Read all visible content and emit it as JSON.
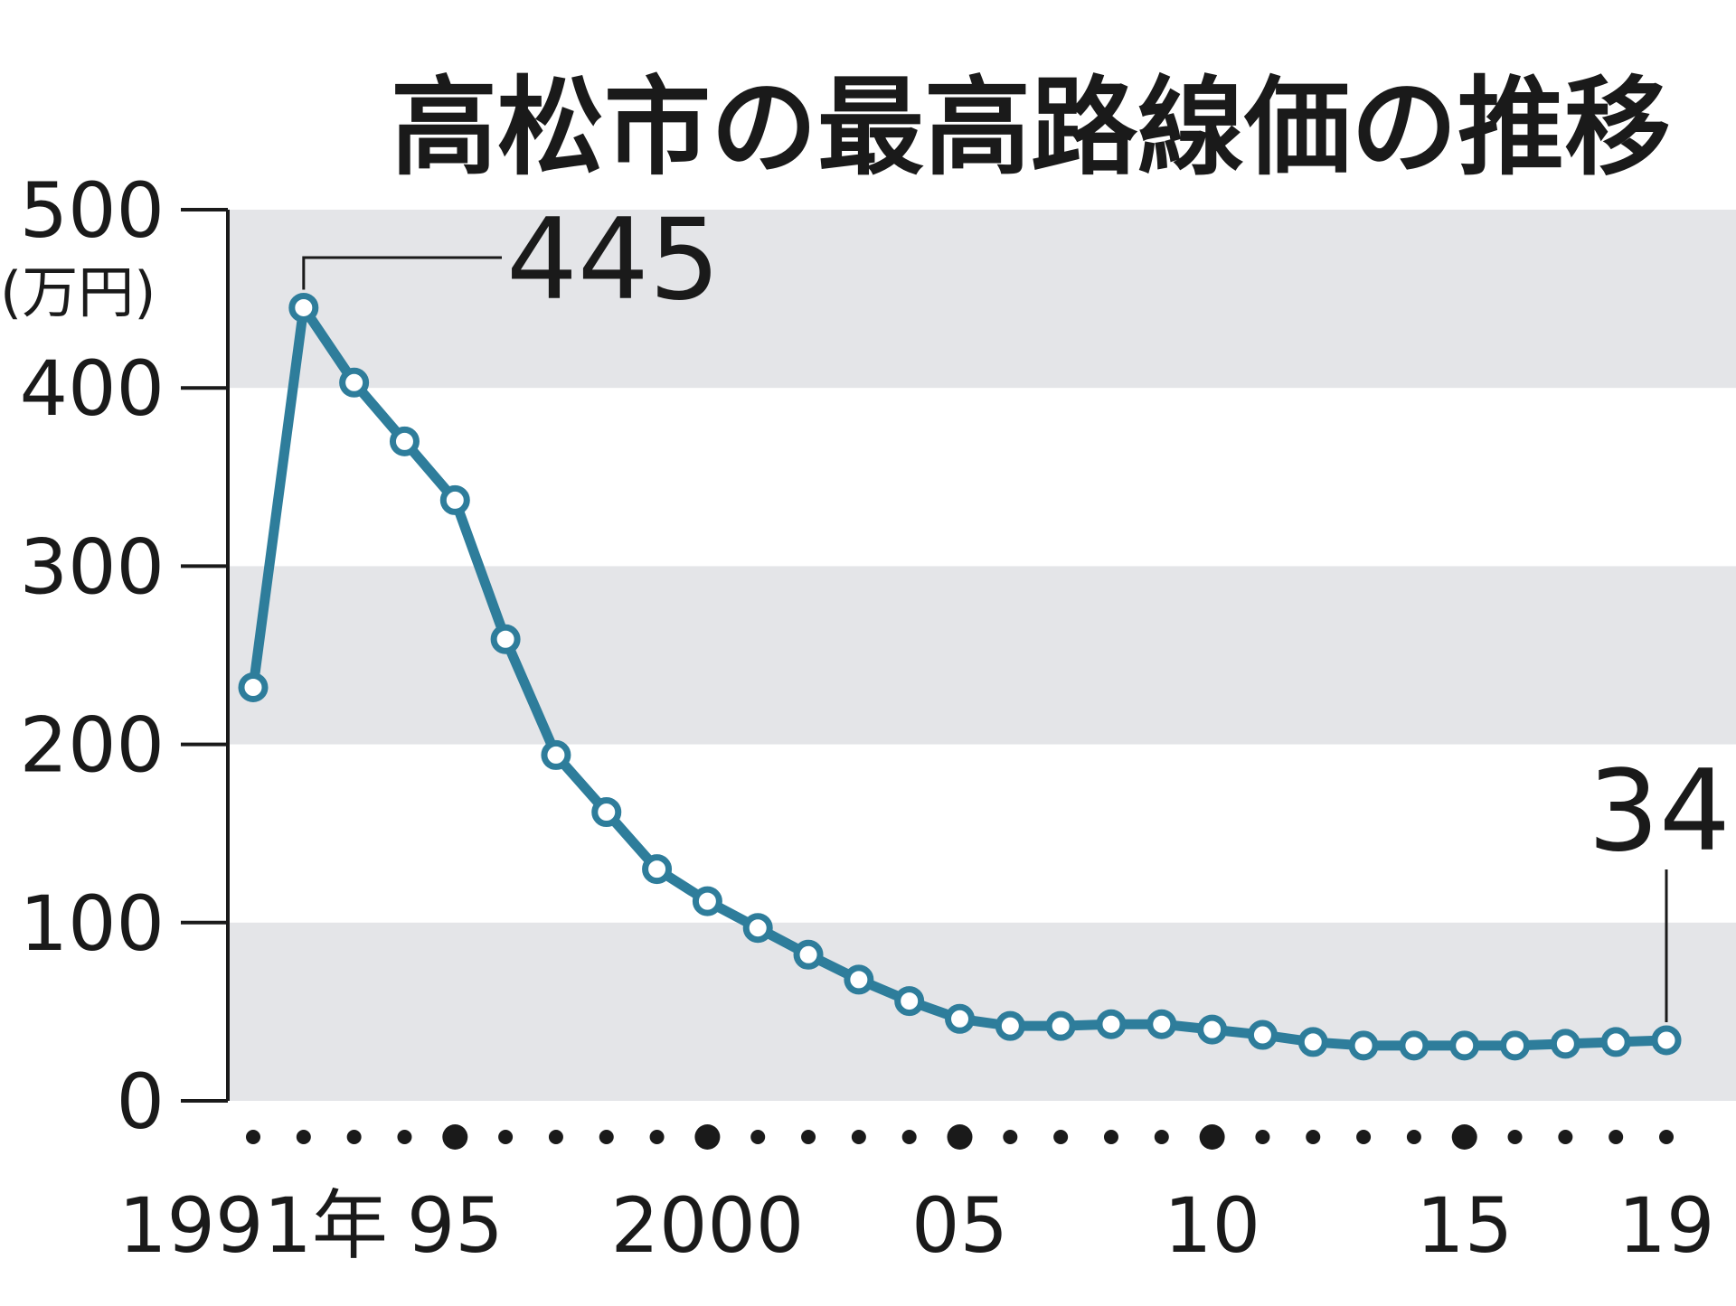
{
  "chart_data": {
    "type": "line",
    "title": "高松市の最高路線価の推移",
    "unit_label": "(万円)",
    "x": [
      1991,
      1992,
      1993,
      1994,
      1995,
      1996,
      1997,
      1998,
      1999,
      2000,
      2001,
      2002,
      2003,
      2004,
      2005,
      2006,
      2007,
      2008,
      2009,
      2010,
      2011,
      2012,
      2013,
      2014,
      2015,
      2016,
      2017,
      2018,
      2019
    ],
    "values": [
      232,
      445,
      403,
      370,
      337,
      259,
      194,
      162,
      130,
      112,
      97,
      82,
      68,
      56,
      46,
      42,
      42,
      43,
      43,
      40,
      37,
      33,
      31,
      31,
      31,
      31,
      32,
      33,
      34
    ],
    "ylim": [
      0,
      500
    ],
    "yticks": [
      "0",
      "100",
      "200",
      "300",
      "400",
      "500"
    ],
    "xtick_labels": [
      {
        "year": 1991,
        "label": "1991年"
      },
      {
        "year": 1995,
        "label": "95"
      },
      {
        "year": 2000,
        "label": "2000"
      },
      {
        "year": 2005,
        "label": "05"
      },
      {
        "year": 2010,
        "label": "10"
      },
      {
        "year": 2015,
        "label": "15"
      },
      {
        "year": 2019,
        "label": "19"
      }
    ],
    "annotations": [
      {
        "year": 1992,
        "value": 445,
        "text": "445"
      },
      {
        "year": 2019,
        "value": 34,
        "text": "34"
      }
    ],
    "grid": "alternating horizontal bands",
    "colors": {
      "line": "#2e7d9b",
      "band": "#e4e5e8",
      "axis": "#1a1a1a",
      "text": "#1a1a1a",
      "marker_fill": "#ffffff"
    }
  }
}
